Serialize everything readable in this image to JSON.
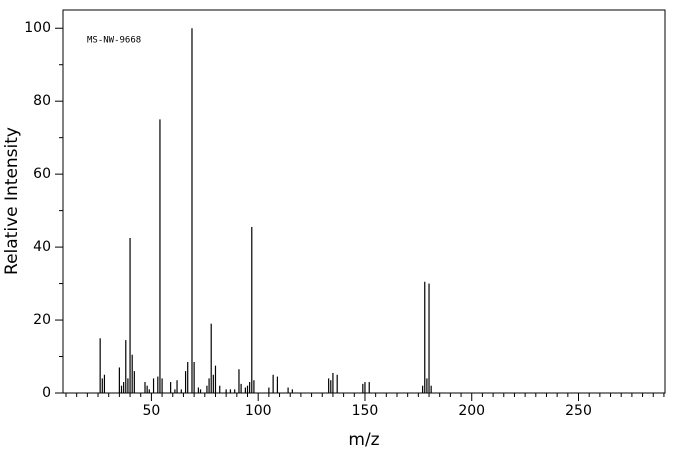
{
  "chart_data": {
    "type": "stem",
    "annotation": "MS-NW-9668",
    "xlabel": "m/z",
    "ylabel": "Relative Intensity",
    "color": "#000000",
    "x": [
      26,
      27,
      28,
      35,
      36,
      37,
      38,
      39,
      40,
      41,
      42,
      47,
      48,
      49,
      51,
      53,
      54,
      55,
      59,
      61,
      62,
      64,
      66,
      67,
      69,
      70,
      72,
      73,
      76,
      77,
      78,
      79,
      80,
      82,
      85,
      87,
      89,
      91,
      92,
      94,
      95,
      96,
      97,
      98,
      105,
      107,
      109,
      114,
      116,
      133,
      134,
      135,
      137,
      149,
      150,
      152,
      177,
      178,
      179,
      180,
      181
    ],
    "values": [
      15,
      4,
      5,
      7,
      2,
      3,
      14.5,
      4,
      42.5,
      10.5,
      6,
      3,
      2,
      1,
      4,
      4.5,
      75,
      4,
      3,
      1,
      3.5,
      1,
      6,
      8.5,
      100,
      8.5,
      1.5,
      1,
      2,
      4,
      19,
      5,
      7.5,
      2,
      1,
      1,
      1,
      6.5,
      2.5,
      1.5,
      2,
      3,
      45.5,
      3.5,
      1.5,
      5,
      4.5,
      1.5,
      1,
      4,
      3.5,
      5.5,
      5,
      2.5,
      3,
      3,
      2,
      30.5,
      4,
      30,
      2
    ],
    "xlim": [
      8.6,
      290.5
    ],
    "ylim": [
      0,
      105
    ],
    "xticks": [
      50,
      100,
      150,
      200,
      250
    ],
    "yticks": [
      0,
      20,
      40,
      60,
      80,
      100
    ],
    "xminorticks": [
      10,
      15,
      20,
      25,
      30,
      35,
      40,
      45,
      55,
      60,
      65,
      70,
      75,
      80,
      85,
      90,
      95,
      105,
      110,
      115,
      120,
      125,
      130,
      135,
      140,
      145,
      155,
      160,
      165,
      170,
      175,
      180,
      185,
      190,
      195,
      205,
      210,
      215,
      220,
      225,
      230,
      235,
      240,
      245,
      255,
      260,
      265,
      270,
      275,
      280,
      285,
      290
    ],
    "yminorticks": [
      10,
      30,
      50,
      70,
      90
    ]
  }
}
